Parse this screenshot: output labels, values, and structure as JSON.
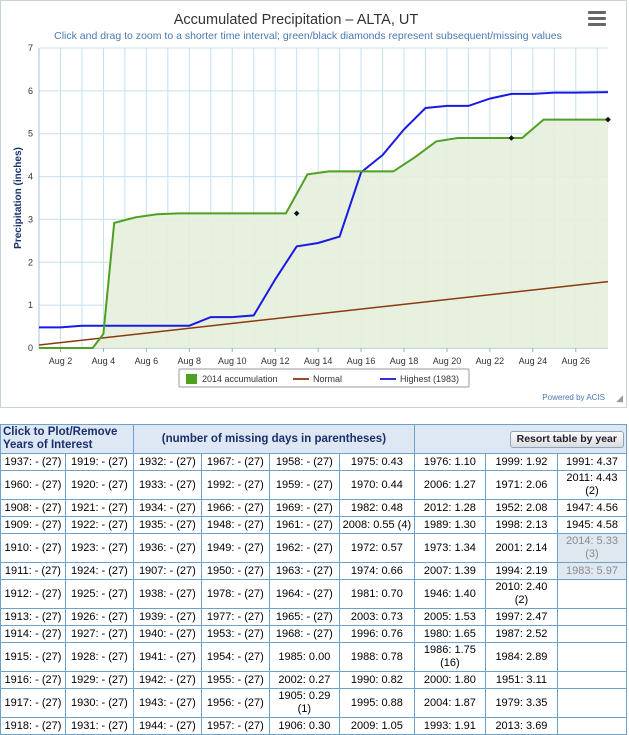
{
  "chart_data": {
    "type": "line",
    "title": "Accumulated Precipitation – ALTA, UT",
    "subtitle": "Click and drag to zoom to a shorter time interval; green/black diamonds represent subsequent/missing values",
    "ylabel": "Precipitation (inches)",
    "xlabel": "",
    "ylim": [
      0,
      7
    ],
    "yticks": [
      "0",
      "1",
      "2",
      "3",
      "4",
      "5",
      "6",
      "7"
    ],
    "xlim": [
      1,
      27.5
    ],
    "xticks": [
      {
        "day": 2,
        "label": "Aug 2"
      },
      {
        "day": 4,
        "label": "Aug 4"
      },
      {
        "day": 6,
        "label": "Aug 6"
      },
      {
        "day": 8,
        "label": "Aug 8"
      },
      {
        "day": 10,
        "label": "Aug 10"
      },
      {
        "day": 12,
        "label": "Aug 12"
      },
      {
        "day": 14,
        "label": "Aug 14"
      },
      {
        "day": 16,
        "label": "Aug 16"
      },
      {
        "day": 18,
        "label": "Aug 18"
      },
      {
        "day": 20,
        "label": "Aug 20"
      },
      {
        "day": 22,
        "label": "Aug 22"
      },
      {
        "day": 24,
        "label": "Aug 24"
      },
      {
        "day": 26,
        "label": "Aug 26"
      }
    ],
    "series": [
      {
        "name": "2014 accumulation",
        "color": "#4ea023",
        "fill": "#e5f0dc",
        "x": [
          1,
          2,
          3,
          3.5,
          4,
          4.5,
          5.5,
          6.5,
          7.5,
          8.5,
          9.5,
          10.5,
          11.5,
          12.5,
          13.5,
          14.5,
          15.5,
          16.5,
          17.5,
          18.5,
          19.5,
          20.5,
          21.5,
          22.5,
          23.5,
          24.5,
          25.5,
          26.5,
          27.5
        ],
        "values": [
          0,
          0,
          0,
          0,
          0.33,
          2.92,
          3.05,
          3.12,
          3.14,
          3.14,
          3.14,
          3.14,
          3.14,
          3.14,
          4.05,
          4.12,
          4.12,
          4.12,
          4.12,
          4.45,
          4.82,
          4.9,
          4.9,
          4.9,
          4.9,
          5.33,
          5.33,
          5.33,
          5.33
        ],
        "diamonds": [
          {
            "x": 13,
            "y": 3.14
          },
          {
            "x": 23,
            "y": 4.9
          },
          {
            "x": 27.5,
            "y": 5.33
          }
        ]
      },
      {
        "name": "Normal",
        "color": "#8b3a0e",
        "x": [
          1,
          27.5
        ],
        "values": [
          0.07,
          1.55
        ]
      },
      {
        "name": "Highest (1983)",
        "color": "#1a1ae6",
        "x": [
          1,
          2,
          3,
          4,
          5,
          6,
          7,
          8,
          9,
          10,
          11,
          12,
          13,
          14,
          15,
          16,
          17,
          18,
          19,
          20,
          21,
          22,
          23,
          24,
          25,
          26,
          27.5
        ],
        "values": [
          0.48,
          0.48,
          0.52,
          0.52,
          0.52,
          0.52,
          0.52,
          0.52,
          0.72,
          0.72,
          0.76,
          1.6,
          2.37,
          2.45,
          2.6,
          4.1,
          4.5,
          5.1,
          5.6,
          5.65,
          5.65,
          5.82,
          5.93,
          5.93,
          5.96,
          5.96,
          5.97
        ]
      }
    ],
    "legend": [
      {
        "name": "2014 accumulation",
        "kind": "box",
        "color": "#4ea023"
      },
      {
        "name": "Normal",
        "kind": "line",
        "color": "#8b3a0e"
      },
      {
        "name": "Highest (1983)",
        "kind": "line",
        "color": "#1a1ae6"
      }
    ],
    "legend_position": "bottom-center",
    "credit": "Powered by ACIS",
    "grid": true
  },
  "table": {
    "header_left": "Click to Plot/Remove Years of Interest",
    "header_mid": "(number of missing days in parentheses)",
    "resort_label": "Resort table by year",
    "rows": [
      [
        "1937: - (27)",
        "1919: - (27)",
        "1932: - (27)",
        "1967: - (27)",
        "1958: - (27)",
        "1975: 0.43",
        "1976: 1.10",
        "1999: 1.92",
        "1991: 4.37"
      ],
      [
        "1960: - (27)",
        "1920: - (27)",
        "1933: - (27)",
        "1992: - (27)",
        "1959: - (27)",
        "1970: 0.44",
        "2006: 1.27",
        "1971: 2.06",
        "2011: 4.43 (2)"
      ],
      [
        "1908: - (27)",
        "1921: - (27)",
        "1934: - (27)",
        "1966: - (27)",
        "1969: - (27)",
        "1982: 0.48",
        "2012: 1.28",
        "1952: 2.08",
        "1947: 4.56"
      ],
      [
        "1909: - (27)",
        "1922: - (27)",
        "1935: - (27)",
        "1948: - (27)",
        "1961: - (27)",
        "2008: 0.55 (4)",
        "1989: 1.30",
        "1998: 2.13",
        "1945: 4.58"
      ],
      [
        "1910: - (27)",
        "1923: - (27)",
        "1936: - (27)",
        "1949: - (27)",
        "1962: - (27)",
        "1972: 0.57",
        "1973: 1.34",
        "2001: 2.14",
        "2014: 5.33 (3)"
      ],
      [
        "1911: - (27)",
        "1924: - (27)",
        "1907: - (27)",
        "1950: - (27)",
        "1963: - (27)",
        "1974: 0.66",
        "2007: 1.39",
        "1994: 2.19",
        "1983: 5.97"
      ],
      [
        "1912: - (27)",
        "1925: - (27)",
        "1938: - (27)",
        "1978: - (27)",
        "1964: - (27)",
        "1981: 0.70",
        "1946: 1.40",
        "2010: 2.40 (2)",
        ""
      ],
      [
        "1913: - (27)",
        "1926: - (27)",
        "1939: - (27)",
        "1977: - (27)",
        "1965: - (27)",
        "2003: 0.73",
        "2005: 1.53",
        "1997: 2.47",
        ""
      ],
      [
        "1914: - (27)",
        "1927: - (27)",
        "1940: - (27)",
        "1953: - (27)",
        "1968: - (27)",
        "1996: 0.76",
        "1980: 1.65",
        "1987: 2.52",
        ""
      ],
      [
        "1915: - (27)",
        "1928: - (27)",
        "1941: - (27)",
        "1954: - (27)",
        "1985: 0.00",
        "1988: 0.78",
        "1986: 1.75 (16)",
        "1984: 2.89",
        ""
      ],
      [
        "1916: - (27)",
        "1929: - (27)",
        "1942: - (27)",
        "1955: - (27)",
        "2002: 0.27",
        "1990: 0.82",
        "2000: 1.80",
        "1951: 3.11",
        ""
      ],
      [
        "1917: - (27)",
        "1930: - (27)",
        "1943: - (27)",
        "1956: - (27)",
        "1905: 0.29 (1)",
        "1995: 0.88",
        "2004: 1.87",
        "1979: 3.35",
        ""
      ],
      [
        "1918: - (27)",
        "1931: - (27)",
        "1944: - (27)",
        "1957: - (27)",
        "1906: 0.30",
        "2009: 1.05",
        "1993: 1.91",
        "2013: 3.69",
        ""
      ]
    ],
    "selected": [
      "2014: 5.33 (3)",
      "1983: 5.97"
    ]
  }
}
